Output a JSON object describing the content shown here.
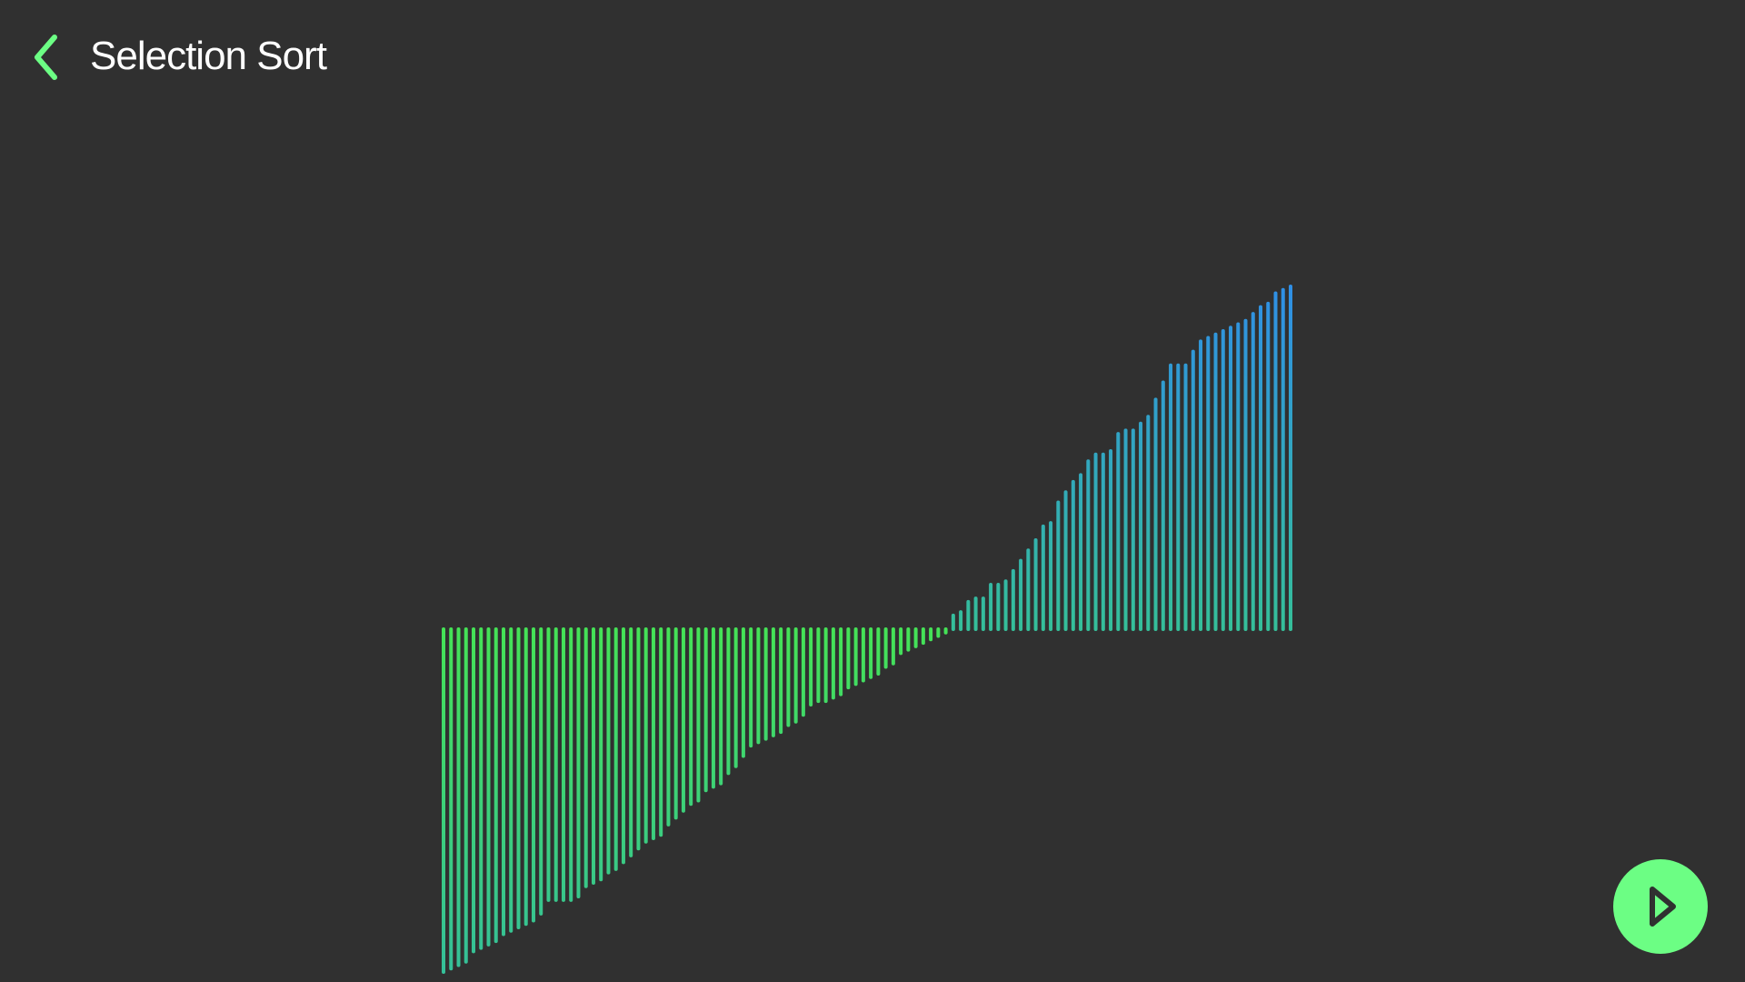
{
  "header": {
    "title": "Selection Sort",
    "back_icon": "chevron-left-icon"
  },
  "colors": {
    "background": "#303030",
    "accent": "#6cfe84",
    "bar_bright": "#45e356",
    "bar_teal": "#35bf99",
    "bar_blue": "#2f8fe6"
  },
  "play_button": {
    "icon": "play-icon"
  },
  "chart_data": {
    "type": "bar",
    "grid": false,
    "ylim": [
      -100,
      100
    ],
    "values": [
      -100,
      -99,
      -98,
      -97,
      -94,
      -93,
      -92,
      -91,
      -89,
      -88,
      -87,
      -86,
      -85,
      -83,
      -79,
      -79,
      -79,
      -79,
      -78,
      -75,
      -74,
      -73,
      -71,
      -70,
      -68,
      -66,
      -64,
      -62,
      -61,
      -60,
      -57,
      -55,
      -53,
      -51,
      -50,
      -47,
      -46,
      -45,
      -42,
      -40,
      -37,
      -34,
      -33,
      -32,
      -31,
      -30,
      -28,
      -27,
      -25,
      -22,
      -21,
      -21,
      -20,
      -19,
      -17,
      -16,
      -15,
      -14,
      -13,
      -11,
      -10,
      -7,
      -6,
      -5,
      -4,
      -3,
      -2,
      -1,
      4,
      5,
      8,
      9,
      9,
      13,
      13,
      14,
      17,
      20,
      23,
      26,
      30,
      31,
      37,
      40,
      43,
      45,
      49,
      51,
      51,
      52,
      57,
      58,
      58,
      60,
      62,
      67,
      72,
      77,
      77,
      77,
      81,
      84,
      85,
      86,
      87,
      88,
      89,
      90,
      92,
      94,
      95,
      98,
      99,
      100
    ]
  }
}
